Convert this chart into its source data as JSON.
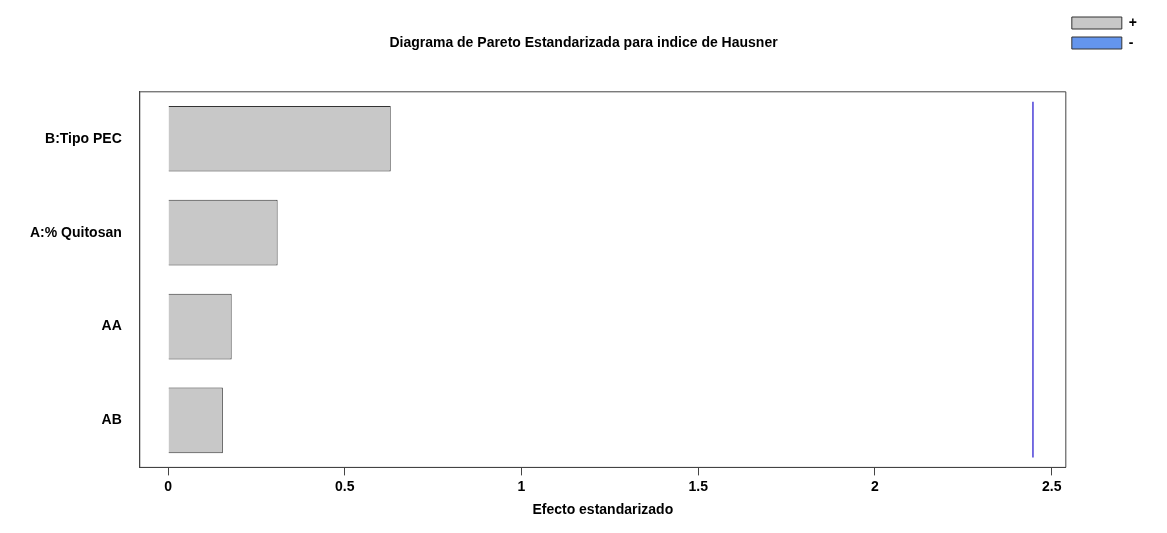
{
  "chart_data": {
    "type": "bar",
    "orientation": "horizontal",
    "title": "Diagrama de Pareto Estandarizada para indice de Hausner",
    "xlabel": "Efecto estandarizado",
    "categories": [
      "B:Tipo PEC",
      "A:% Quitosan",
      "AA",
      "AB"
    ],
    "series": [
      {
        "name": "+",
        "color": "#c8c8c8",
        "values": [
          0.63,
          0.31,
          0.18,
          0.155
        ]
      },
      {
        "name": "-",
        "color": "#6495ed",
        "values": [
          null,
          null,
          null,
          null
        ]
      }
    ],
    "xlim": [
      -0.08,
      2.54
    ],
    "xticks": [
      0,
      0.5,
      1,
      1.5,
      2,
      2.5
    ],
    "ref_lines": [
      {
        "axis": "x",
        "value": 2.447,
        "color": "#4b3fd8"
      }
    ],
    "grid": false,
    "legend": "top right"
  }
}
